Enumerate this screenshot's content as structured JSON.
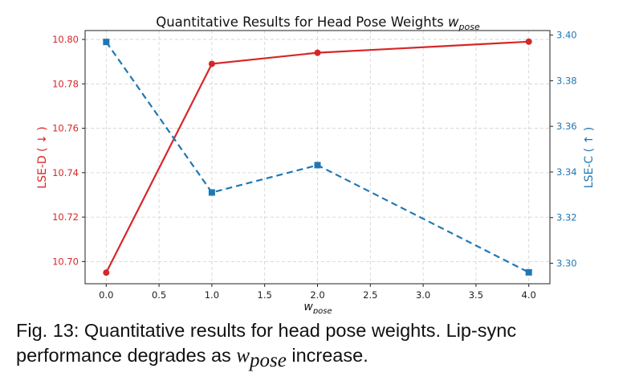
{
  "chart_data": {
    "type": "line",
    "title": "Quantitative Results for Head Pose Weights",
    "title_math": "w",
    "title_math_sub": "pose",
    "xlabel": "w",
    "xlabel_sub": "pose",
    "x": [
      0.0,
      1.0,
      2.0,
      4.0
    ],
    "xlim": [
      -0.2,
      4.2
    ],
    "xticks": [
      "0.0",
      "0.5",
      "1.0",
      "1.5",
      "2.0",
      "2.5",
      "3.0",
      "3.5",
      "4.0"
    ],
    "grid": true,
    "series": [
      {
        "name": "LSE-D ( ↓ )",
        "axis": "left",
        "color": "#d62728",
        "style": "solid",
        "marker": "circle",
        "values": [
          10.695,
          10.789,
          10.794,
          10.799
        ],
        "ylim": [
          10.69,
          10.804
        ],
        "yticks": [
          "10.70",
          "10.72",
          "10.74",
          "10.76",
          "10.78",
          "10.80"
        ]
      },
      {
        "name": "LSE-C ( ↑ )",
        "axis": "right",
        "color": "#1f77b4",
        "style": "dashed",
        "marker": "square",
        "values": [
          3.397,
          3.331,
          3.343,
          3.296
        ],
        "ylim": [
          3.291,
          3.402
        ],
        "yticks": [
          "3.30",
          "3.32",
          "3.34",
          "3.36",
          "3.38",
          "3.40"
        ]
      }
    ]
  },
  "caption": {
    "prefix": "Fig. 13: Quantitative results for head pose weights.  Lip-sync performance degrades as",
    "math": "w",
    "math_sub": "pose",
    "suffix": "increase."
  }
}
